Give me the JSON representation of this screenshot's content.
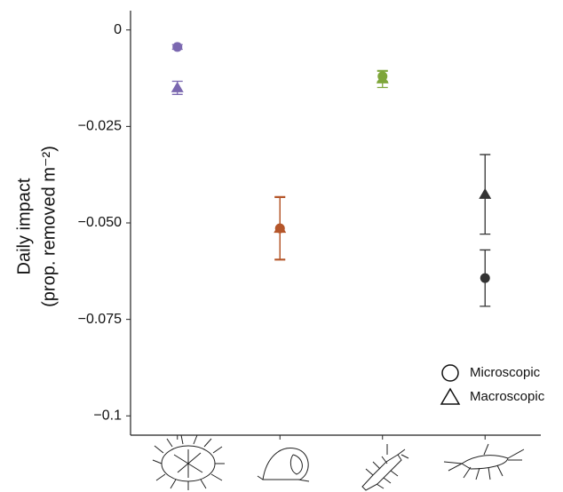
{
  "chart_data": {
    "type": "scatter",
    "y_label": [
      "Daily impact",
      "(prop. removed  m⁻²)"
    ],
    "categories": [
      null,
      null,
      null,
      null
    ],
    "category_colors": [
      "#7b68b0",
      "#b5562a",
      "#7ea63a",
      "#333333"
    ],
    "series": [
      {
        "name": "Microscopic",
        "marker": "circle",
        "values": [
          -0.0044,
          -0.0514,
          -0.012,
          -0.0643
        ],
        "errors": [
          0.0006,
          0.008,
          0.0013,
          0.0073
        ]
      },
      {
        "name": "Macroscopic",
        "marker": "triangle",
        "values": [
          -0.015,
          -0.0514,
          -0.0127,
          -0.0426
        ],
        "errors": [
          0.0017,
          0.0082,
          0.0022,
          0.0103
        ]
      }
    ],
    "ylim": [
      -0.105,
      0.005
    ],
    "yticks": [
      0,
      {
        "value": -0.025,
        "label": "−0.025"
      },
      {
        "value": -0.05,
        "label": "−0.050"
      },
      {
        "value": -0.075,
        "label": "−0.075"
      },
      {
        "value": -0.1,
        "label": "−0.1"
      }
    ],
    "grid": false
  }
}
